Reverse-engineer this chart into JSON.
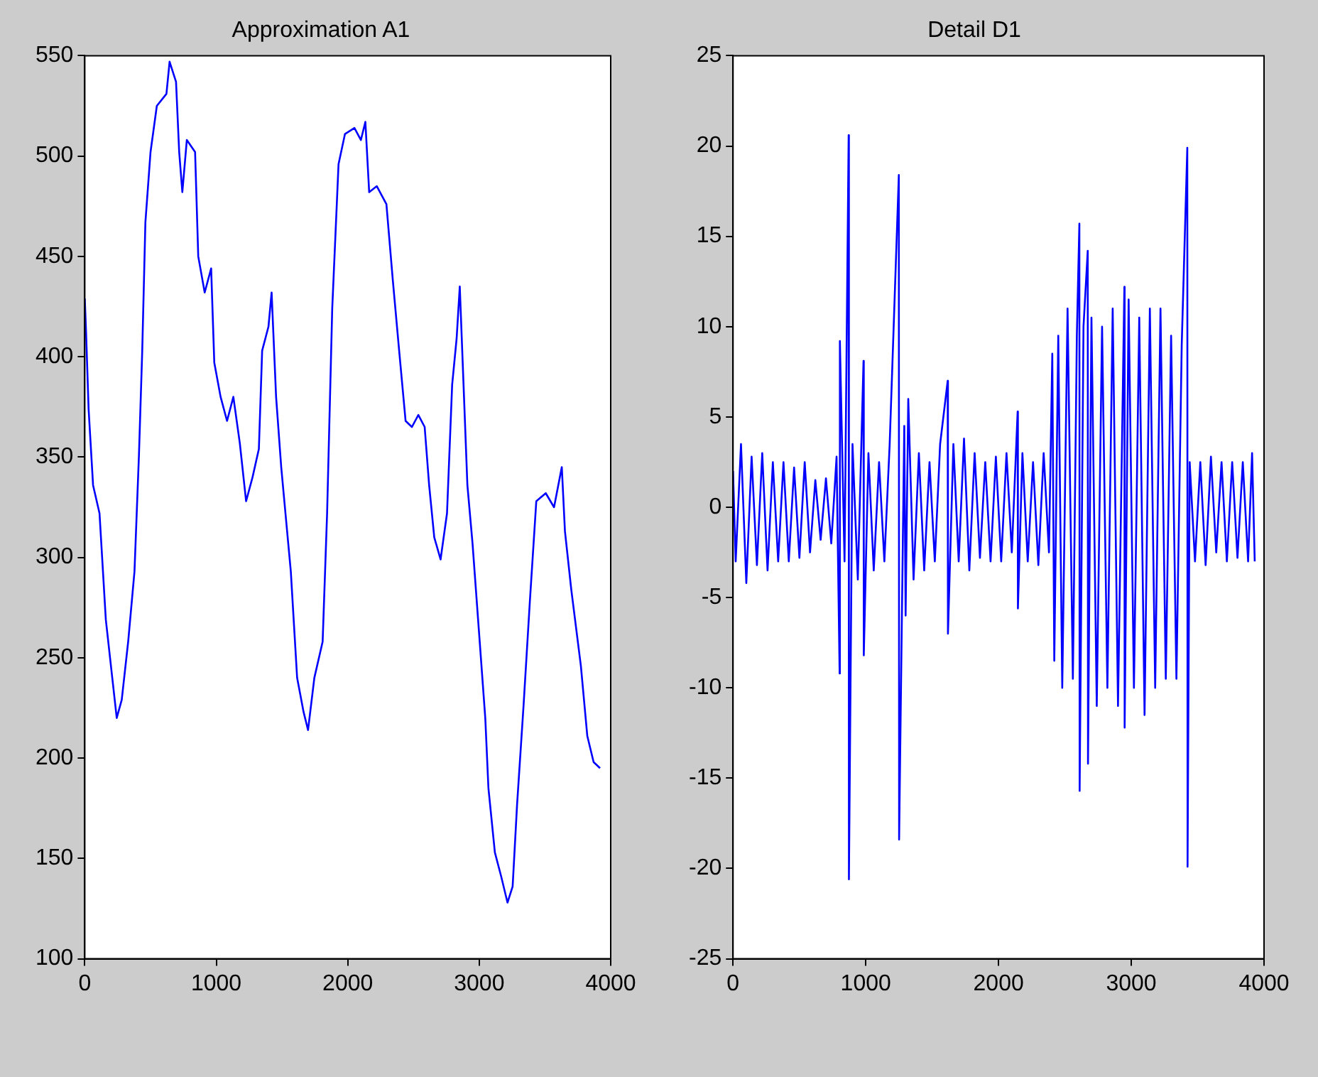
{
  "chart_data": [
    {
      "type": "line",
      "title": "Approximation A1",
      "color": "#0000ff",
      "xlim": [
        0,
        4000
      ],
      "ylim": [
        100,
        550
      ],
      "xticks": [
        0,
        1000,
        2000,
        3000,
        4000
      ],
      "yticks": [
        100,
        150,
        200,
        250,
        300,
        350,
        400,
        450,
        500,
        550
      ],
      "legend": false,
      "grid": false,
      "x": [
        0,
        10,
        29,
        63,
        112,
        160,
        209,
        243,
        281,
        330,
        378,
        412,
        437,
        461,
        500,
        548,
        621,
        645,
        694,
        718,
        742,
        776,
        839,
        863,
        912,
        961,
        985,
        1033,
        1082,
        1130,
        1179,
        1227,
        1276,
        1324,
        1349,
        1397,
        1421,
        1455,
        1494,
        1567,
        1615,
        1664,
        1698,
        1746,
        1809,
        1843,
        1882,
        1930,
        1979,
        2051,
        2100,
        2134,
        2163,
        2221,
        2294,
        2343,
        2391,
        2440,
        2488,
        2537,
        2585,
        2619,
        2658,
        2706,
        2755,
        2794,
        2828,
        2852,
        2876,
        2910,
        2949,
        2997,
        3046,
        3070,
        3119,
        3167,
        3215,
        3254,
        3288,
        3337,
        3385,
        3434,
        3506,
        3569,
        3628,
        3652,
        3700,
        3773,
        3822,
        3870,
        3919
      ],
      "values": [
        429,
        412,
        374,
        336,
        322,
        269,
        240,
        220,
        229,
        258,
        293,
        351,
        403,
        467,
        502,
        525,
        531,
        547,
        537,
        502,
        482,
        508,
        502,
        450,
        432,
        444,
        397,
        380,
        368,
        380,
        357,
        328,
        340,
        354,
        403,
        415,
        432,
        380,
        345,
        293,
        240,
        223,
        214,
        240,
        258,
        322,
        424,
        496,
        511,
        514,
        508,
        517,
        482,
        485,
        476,
        438,
        403,
        368,
        365,
        371,
        365,
        336,
        310,
        299,
        322,
        386,
        409,
        435,
        394,
        336,
        307,
        264,
        220,
        185,
        153,
        141,
        128,
        136,
        177,
        226,
        278,
        328,
        332,
        325,
        345,
        313,
        284,
        246,
        211,
        198,
        195
      ]
    },
    {
      "type": "line",
      "title": "Detail D1",
      "color": "#0000ff",
      "xlim": [
        0,
        4000
      ],
      "ylim": [
        -25,
        25
      ],
      "xticks": [
        0,
        1000,
        2000,
        3000,
        4000
      ],
      "yticks": [
        -25,
        -20,
        -15,
        -10,
        -5,
        0,
        5,
        10,
        15,
        20,
        25
      ],
      "legend": false,
      "grid": false,
      "x": [
        0,
        20,
        60,
        100,
        140,
        180,
        220,
        260,
        300,
        340,
        380,
        420,
        460,
        500,
        540,
        580,
        620,
        660,
        700,
        740,
        780,
        803,
        805,
        840,
        871,
        873,
        900,
        940,
        983,
        985,
        1020,
        1060,
        1100,
        1140,
        1180,
        1249,
        1251,
        1290,
        1300,
        1320,
        1360,
        1400,
        1440,
        1480,
        1520,
        1560,
        1617,
        1619,
        1660,
        1700,
        1740,
        1780,
        1820,
        1860,
        1900,
        1940,
        1980,
        2020,
        2060,
        2100,
        2144,
        2146,
        2180,
        2220,
        2260,
        2300,
        2340,
        2380,
        2405,
        2420,
        2450,
        2480,
        2520,
        2560,
        2590,
        2609,
        2611,
        2640,
        2672,
        2674,
        2700,
        2740,
        2780,
        2820,
        2860,
        2900,
        2948,
        2950,
        2980,
        3020,
        3060,
        3100,
        3140,
        3180,
        3220,
        3260,
        3300,
        3340,
        3380,
        3422,
        3424,
        3440,
        3480,
        3520,
        3560,
        3600,
        3640,
        3680,
        3720,
        3760,
        3800,
        3840,
        3880,
        3910,
        3930
      ],
      "values": [
        2,
        -3,
        3.5,
        -4.2,
        2.8,
        -3.2,
        3,
        -3.5,
        2.5,
        -3,
        2.5,
        -3,
        2.2,
        -2.8,
        2.5,
        -2.5,
        1.5,
        -1.8,
        1.6,
        -2,
        2.8,
        -9.2,
        9.2,
        -3,
        20.6,
        -20.6,
        3.5,
        -4,
        8.1,
        -8.2,
        3,
        -3.5,
        2.5,
        -3,
        3.5,
        18.4,
        -18.4,
        4.5,
        -6,
        6,
        -4,
        3,
        -3.5,
        2.5,
        -3,
        3.5,
        7,
        -7,
        3.5,
        -3,
        3.8,
        -3.5,
        3,
        -2.8,
        2.5,
        -3,
        2.8,
        -3,
        3,
        -2.5,
        5.3,
        -5.6,
        3,
        -3,
        2.5,
        -3.2,
        3,
        -2.5,
        8.5,
        -8.5,
        9.5,
        -10,
        11,
        -9.5,
        9.5,
        15.7,
        -15.7,
        10,
        14.2,
        -14.2,
        10.5,
        -11,
        10,
        -10,
        11,
        -11,
        12.2,
        -12.2,
        11.5,
        -10,
        10.5,
        -11.5,
        11,
        -10,
        11,
        -9.5,
        9.5,
        -9.5,
        9,
        19.9,
        -19.9,
        2.5,
        -3,
        2.5,
        -3.2,
        2.8,
        -2.5,
        2.5,
        -3,
        2.5,
        -2.8,
        2.5,
        -3,
        3,
        -3
      ]
    }
  ]
}
